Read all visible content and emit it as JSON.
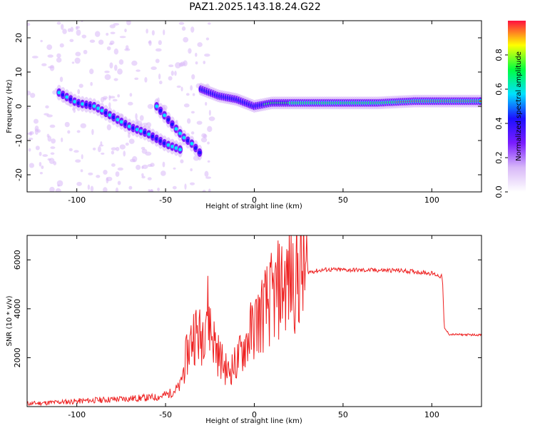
{
  "title": "PAZ1.2025.143.18.24.G22",
  "chart_data": [
    {
      "type": "heatmap",
      "xlabel": "Height of straight line (km)",
      "ylabel": "Frequency (Hz)",
      "xlim": [
        -128,
        128
      ],
      "ylim": [
        -25,
        25
      ],
      "xticks": [
        -100,
        -50,
        0,
        50,
        100
      ],
      "yticks": [
        -20,
        -10,
        0,
        10,
        20
      ],
      "colorbar_label": "Normalized spectral amplitude",
      "colorbar_ticks": [
        0.0,
        0.2,
        0.4,
        0.6,
        0.8
      ],
      "colorbar_tick_labels": [
        "0.0",
        "0.2",
        "0.4",
        "0.6",
        "0.8"
      ],
      "colormap": [
        "#ffffff",
        "#d8b8f8",
        "#7a1cff",
        "#1c10ff",
        "#00e0ff",
        "#00ff40",
        "#ffff00",
        "#ff1040"
      ],
      "ridges": [
        {
          "name": "descending-left",
          "x": [
            -110,
            -100,
            -90,
            -80,
            -70,
            -60,
            -50,
            -40
          ],
          "y": [
            4,
            1,
            0,
            -3,
            -6,
            -8,
            -11,
            -13
          ]
        },
        {
          "name": "descending-right",
          "x": [
            -55,
            -50,
            -45,
            -40,
            -35,
            -30
          ],
          "y": [
            0,
            -3,
            -6,
            -9,
            -11,
            -14
          ]
        },
        {
          "name": "main-line",
          "x": [
            -30,
            -20,
            -10,
            0,
            10,
            30,
            50,
            70,
            90,
            110,
            128
          ],
          "y": [
            5,
            3,
            2,
            0,
            1,
            1,
            1,
            1,
            1.5,
            1.5,
            1.5
          ]
        }
      ]
    },
    {
      "type": "line",
      "xlabel": "Height of straight line (km)",
      "ylabel": "SNR (10 * v/v)",
      "xlim": [
        -128,
        128
      ],
      "ylim": [
        0,
        7000
      ],
      "xticks": [
        -100,
        -50,
        0,
        50,
        100
      ],
      "yticks": [
        2000,
        4000,
        6000
      ],
      "color": "#ee2020",
      "x": [
        -128,
        -110,
        -90,
        -70,
        -55,
        -48,
        -42,
        -38,
        -34,
        -30,
        -27,
        -24,
        -20,
        -15,
        -10,
        -5,
        0,
        5,
        10,
        15,
        20,
        25,
        30,
        40,
        60,
        80,
        90,
        100,
        104,
        106,
        107,
        110,
        128
      ],
      "y": [
        120,
        180,
        260,
        330,
        380,
        520,
        800,
        2100,
        3100,
        2800,
        4200,
        3000,
        2100,
        1400,
        1800,
        2600,
        3300,
        3900,
        4400,
        4900,
        5200,
        5400,
        5500,
        5600,
        5580,
        5570,
        5520,
        5450,
        5350,
        5300,
        3200,
        2950,
        2930
      ]
    }
  ]
}
